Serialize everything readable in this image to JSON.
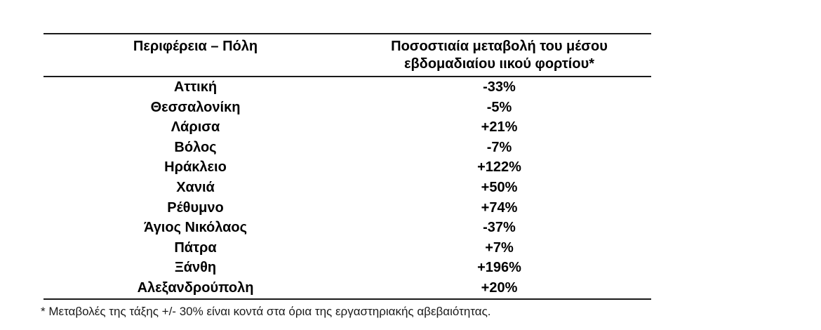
{
  "page": {
    "background": "#ffffff",
    "text_color": "#000000",
    "line_color": "#1a1a1a"
  },
  "table": {
    "columns": [
      {
        "label": "Περιφέρεια – Πόλη"
      },
      {
        "label": "Ποσοστιαία μεταβολή του μέσου εβδομαδιαίου ιικού φορτίου*"
      }
    ],
    "rows": [
      {
        "city": "Αττική",
        "change": "-33%"
      },
      {
        "city": "Θεσσαλονίκη",
        "change": "-5%"
      },
      {
        "city": "Λάρισα",
        "change": "+21%"
      },
      {
        "city": "Βόλος",
        "change": "-7%"
      },
      {
        "city": "Ηράκλειο",
        "change": "+122%"
      },
      {
        "city": "Χανιά",
        "change": "+50%"
      },
      {
        "city": "Ρέθυμνο",
        "change": "+74%"
      },
      {
        "city": "Άγιος Νικόλαος",
        "change": "-37%"
      },
      {
        "city": "Πάτρα",
        "change": "+7%"
      },
      {
        "city": "Ξάνθη",
        "change": "+196%"
      },
      {
        "city": "Αλεξανδρούπολη",
        "change": "+20%"
      }
    ],
    "footnote": "* Μεταβολές της τάξης +/- 30% είναι κοντά στα όρια της εργαστηριακής αβεβαιότητας."
  }
}
